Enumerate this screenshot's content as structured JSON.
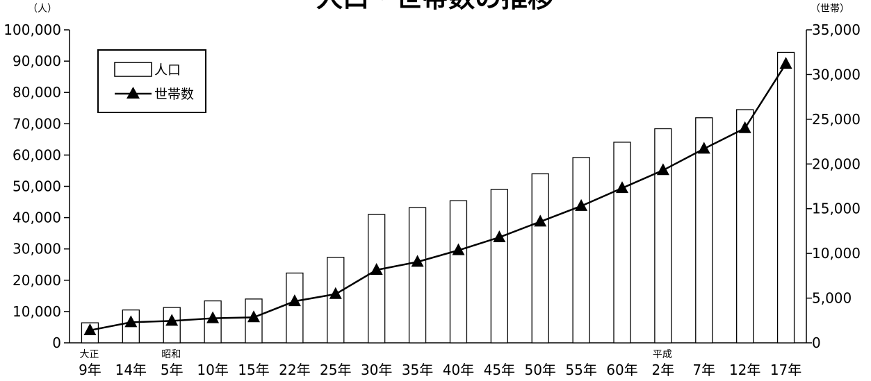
{
  "chart_data": {
    "type": "bar+line",
    "title": "人口・世帯数の推移",
    "categories": [
      "9年",
      "14年",
      "5年",
      "10年",
      "15年",
      "22年",
      "25年",
      "30年",
      "35年",
      "40年",
      "45年",
      "50年",
      "55年",
      "60年",
      "2年",
      "7年",
      "12年",
      "17年"
    ],
    "era_labels": [
      {
        "index": 0,
        "text": "大正"
      },
      {
        "index": 2,
        "text": "昭和"
      },
      {
        "index": 14,
        "text": "平成"
      }
    ],
    "y_left": {
      "unit_label": "（人）",
      "range": [
        0,
        100000
      ],
      "ticks": [
        "0",
        "10,000",
        "20,000",
        "30,000",
        "40,000",
        "50,000",
        "60,000",
        "70,000",
        "80,000",
        "90,000",
        "100,000"
      ]
    },
    "y_right": {
      "unit_label": "（世帯）",
      "range": [
        0,
        35000
      ],
      "ticks": [
        "0",
        "5,000",
        "10,000",
        "15,000",
        "20,000",
        "25,000",
        "30,000",
        "35,000"
      ]
    },
    "series": [
      {
        "name": "人口",
        "type": "bar",
        "axis": "left",
        "values": [
          6400,
          10500,
          11300,
          13400,
          14000,
          22300,
          27300,
          41000,
          43200,
          45400,
          49000,
          54000,
          59200,
          64100,
          68400,
          71900,
          74500,
          92800
        ]
      },
      {
        "name": "世帯数",
        "type": "line",
        "axis": "right",
        "values": [
          1400,
          2300,
          2450,
          2750,
          2850,
          4650,
          5450,
          8150,
          9050,
          10350,
          11800,
          13550,
          15300,
          17300,
          19300,
          21700,
          24000,
          31200
        ]
      }
    ],
    "legend_position": "top-left",
    "grid": false
  },
  "colors": {
    "bar_fill": "#ffffff",
    "stroke": "#000000"
  }
}
